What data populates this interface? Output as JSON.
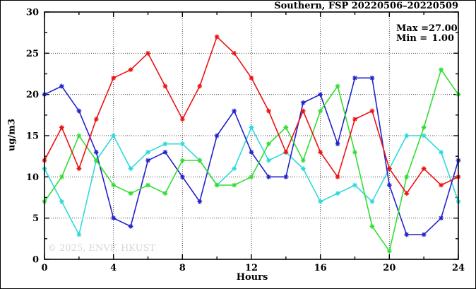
{
  "watermark": "© 2025, ENVF, HKUST",
  "chart_data": {
    "type": "line",
    "title": "Southern, FSP 20220506–20220509",
    "xlabel": "Hours",
    "ylabel": "ug/m3",
    "xlim": [
      0,
      24
    ],
    "ylim": [
      0,
      30
    ],
    "x_major_ticks": [
      0,
      4,
      8,
      12,
      16,
      20,
      24
    ],
    "x_minor_ticks": [
      2,
      6,
      10,
      14,
      18,
      22
    ],
    "y_major_ticks": [
      0,
      5,
      10,
      15,
      20,
      25,
      30
    ],
    "y_minor_ticks": [
      2.5,
      7.5,
      12.5,
      17.5,
      22.5,
      27.5
    ],
    "grid": true,
    "legend": {
      "position": "top-right",
      "entries": [
        {
          "label": "Max =",
          "value": "27.00"
        },
        {
          "label": "Min =",
          "value": "1.00"
        }
      ]
    },
    "stats": {
      "max": 27.0,
      "min": 1.0
    },
    "x": [
      0,
      1,
      2,
      3,
      4,
      5,
      6,
      7,
      8,
      9,
      10,
      11,
      12,
      13,
      14,
      15,
      16,
      17,
      18,
      19,
      20,
      21,
      22,
      23,
      24
    ],
    "series": [
      {
        "name": "series-cyan",
        "color": "#2fd9d9",
        "values": [
          11,
          7,
          3,
          12,
          15,
          11,
          13,
          14,
          14,
          12,
          9,
          11,
          16,
          12,
          13,
          11,
          7,
          8,
          9,
          7,
          11,
          15,
          15,
          13,
          7
        ]
      },
      {
        "name": "series-blue",
        "color": "#2222cc",
        "values": [
          20,
          21,
          18,
          13,
          5,
          4,
          12,
          13,
          10,
          7,
          15,
          18,
          13,
          10,
          10,
          19,
          20,
          14,
          22,
          22,
          9,
          3,
          3,
          5,
          12
        ]
      },
      {
        "name": "series-green",
        "color": "#33dd33",
        "values": [
          7,
          10,
          15,
          12,
          9,
          8,
          9,
          8,
          12,
          12,
          9,
          9,
          10,
          14,
          16,
          12,
          18,
          21,
          13,
          4,
          1,
          10,
          16,
          23,
          20
        ]
      },
      {
        "name": "series-red",
        "color": "#ee1111",
        "values": [
          12,
          16,
          11,
          17,
          22,
          23,
          25,
          21,
          17,
          21,
          27,
          25,
          22,
          18,
          13,
          18,
          13,
          10,
          17,
          18,
          11,
          8,
          11,
          9,
          10
        ]
      }
    ]
  }
}
